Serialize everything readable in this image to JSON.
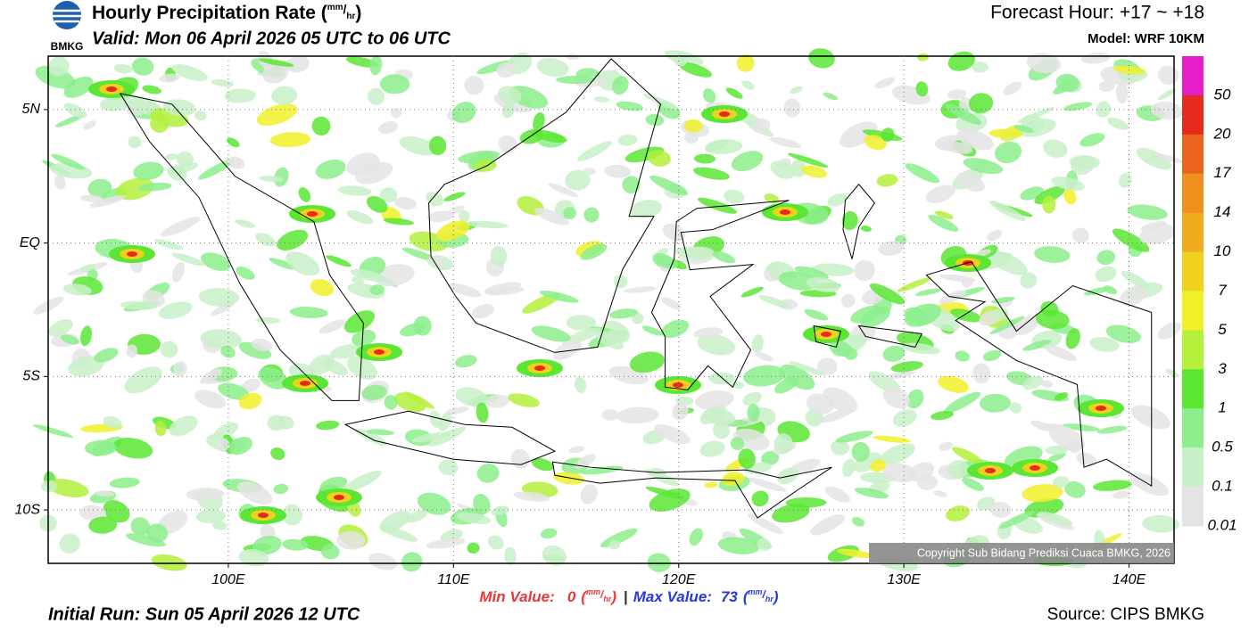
{
  "header": {
    "logo_text": "BMKG",
    "title": "Hourly Precipitation Rate (",
    "title_unit_num": "mm",
    "title_unit_sep": "/",
    "title_unit_den": "hr",
    "title_close": ")",
    "valid": "Valid: Mon 06 April 2026 05 UTC to 06 UTC",
    "forecast_hour": "Forecast Hour: +17 ~ +18",
    "model": "Model: WRF 10KM"
  },
  "map": {
    "lonlim": [
      92,
      142
    ],
    "latlim": [
      -12,
      7
    ],
    "lonticks": [
      {
        "value": 100,
        "label": "100E"
      },
      {
        "value": 110,
        "label": "110E"
      },
      {
        "value": 120,
        "label": "120E"
      },
      {
        "value": 130,
        "label": "130E"
      },
      {
        "value": 140,
        "label": "140E"
      }
    ],
    "latticks": [
      {
        "value": 5,
        "label": "5N"
      },
      {
        "value": 0,
        "label": "EQ"
      },
      {
        "value": -5,
        "label": "5S"
      },
      {
        "value": -10,
        "label": "10S"
      }
    ],
    "copyright": "Copyright Sub Bidang Prediksi Cuaca BMKG, 2026"
  },
  "colorbar": {
    "colors": [
      "#e61ec8",
      "#e62a1e",
      "#ea641e",
      "#f0901e",
      "#f0ac1e",
      "#f0d21e",
      "#f0f028",
      "#b4f03c",
      "#5ae632",
      "#8cee8c",
      "#c8f0c8",
      "#e4e4e4"
    ],
    "labels": [
      "50",
      "20",
      "17",
      "14",
      "10",
      "7",
      "5",
      "3",
      "1",
      "0.5",
      "0.1",
      "0.01"
    ]
  },
  "stats": {
    "min_label": "Min Value:",
    "min_value": "0",
    "max_label": "Max Value:",
    "max_value": "73",
    "open": "(",
    "num": "mm",
    "sep": "/",
    "den": "hr",
    "close": ")",
    "divider": "|"
  },
  "footer": {
    "initial_run": "Initial Run: Sun 05 April 2026 12 UTC",
    "source": "Source: CIPS BMKG"
  }
}
